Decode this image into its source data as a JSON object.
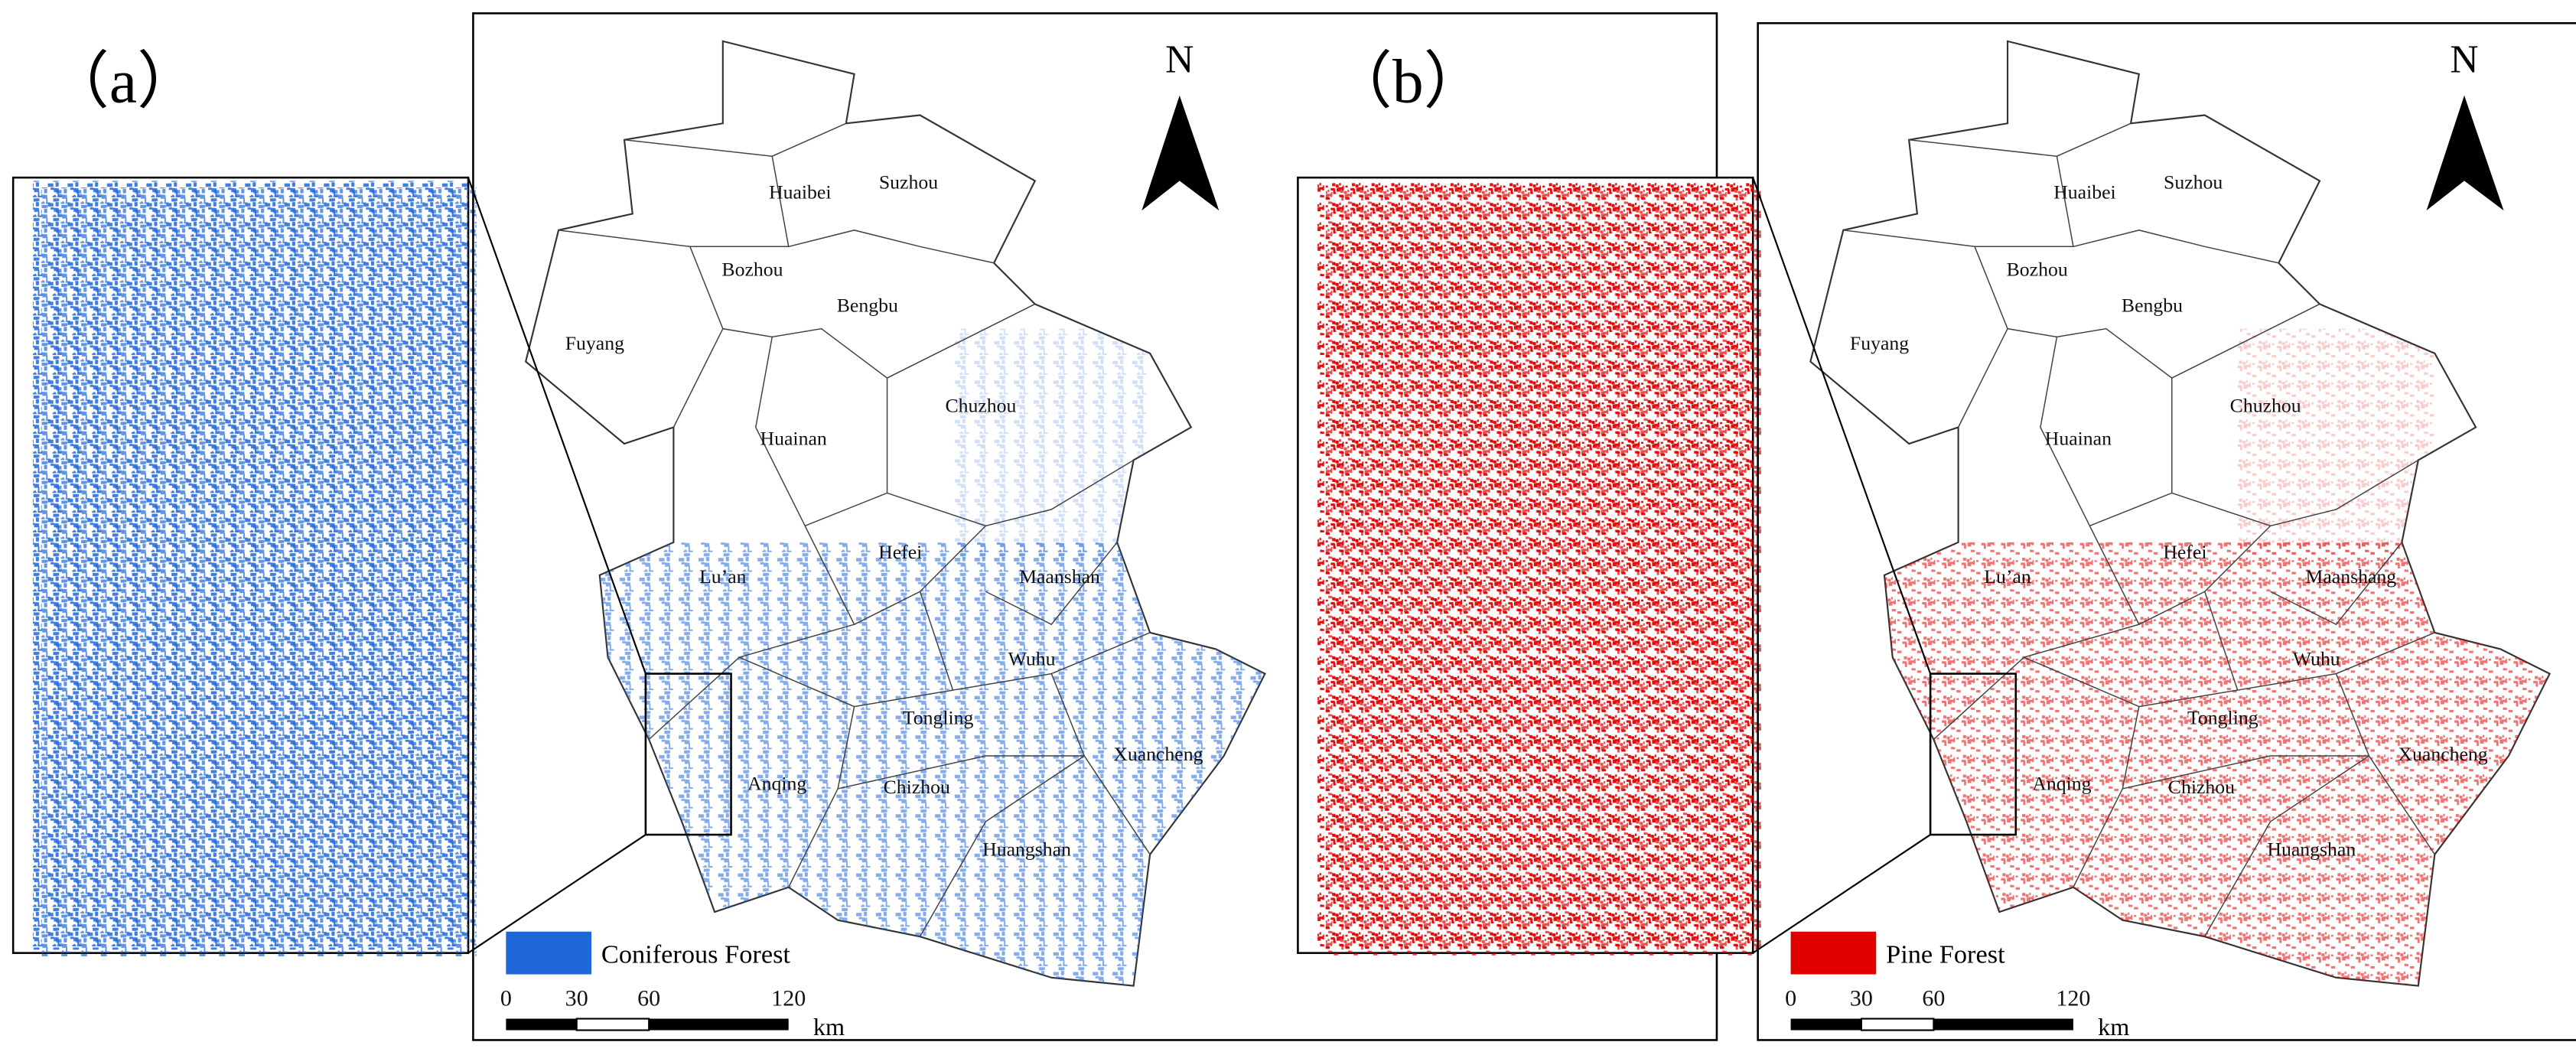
{
  "panels": [
    {
      "label": "（a）",
      "north": "N",
      "legend": "Coniferous Forest",
      "color": "#1f66d9",
      "scale_bar": {
        "ticks": [
          "0",
          "30",
          "60",
          "120"
        ],
        "unit": "km"
      },
      "cities": [
        "Huaibei",
        "Suzhou",
        "Bozhou",
        "Bengbu",
        "Fuyang",
        "Chuzhou",
        "Huainan",
        "Lu’an",
        "Hefei",
        "Maanshan",
        "Wuhu",
        "Tongling",
        "Anqing",
        "Xuancheng",
        "Chizhou",
        "Huangshan"
      ]
    },
    {
      "label": "（b）",
      "north": "N",
      "legend": "Pine Forest",
      "color": "#e00000",
      "scale_bar": {
        "ticks": [
          "0",
          "30",
          "60",
          "120"
        ],
        "unit": "km"
      },
      "cities": [
        "Huaibei",
        "Suzhou",
        "Bozhou",
        "Bengbu",
        "Fuyang",
        "Chuzhou",
        "Huainan",
        "Lu’an",
        "Hefei",
        "Maanshang",
        "Wuhu",
        "Tongling",
        "Anqing",
        "Xuancheng",
        "Chizhou",
        "Huangshan"
      ]
    }
  ]
}
